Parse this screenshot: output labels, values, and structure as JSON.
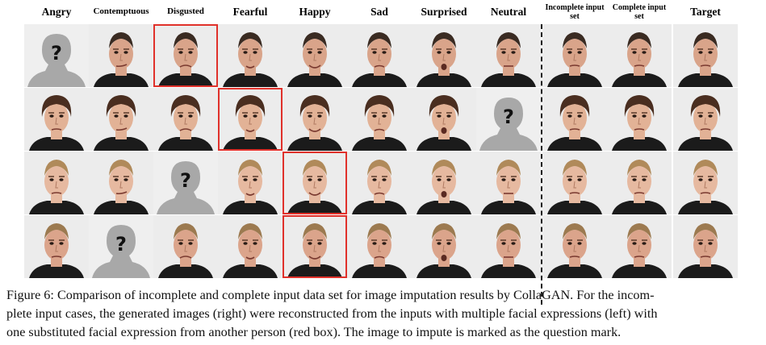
{
  "headers": [
    "Angry",
    "Contemptuous",
    "Disgusted",
    "Fearful",
    "Happy",
    "Sad",
    "Surprised",
    "Neutral",
    "Incomplete input set",
    "Complete input set",
    "Target"
  ],
  "rows": [
    {
      "missing": 0,
      "substituted": 2
    },
    {
      "missing": 7,
      "substituted": 3
    },
    {
      "missing": 2,
      "substituted": 4
    },
    {
      "missing": 1,
      "substituted": 4
    }
  ],
  "missing_mark": "?",
  "colors": {
    "red_box": "#e0312b",
    "divider": "#222222",
    "silhouette": "#a8a8a8"
  },
  "caption": [
    "Figure 6: Comparison of incomplete and complete input data set for image imputation results by CollaGAN. For the incom-",
    "plete input cases, the generated images (right) were reconstructed from the inputs with multiple facial expressions (left) with",
    "one substituted facial expression from another person (red box). The image to impute is marked as the question mark."
  ]
}
